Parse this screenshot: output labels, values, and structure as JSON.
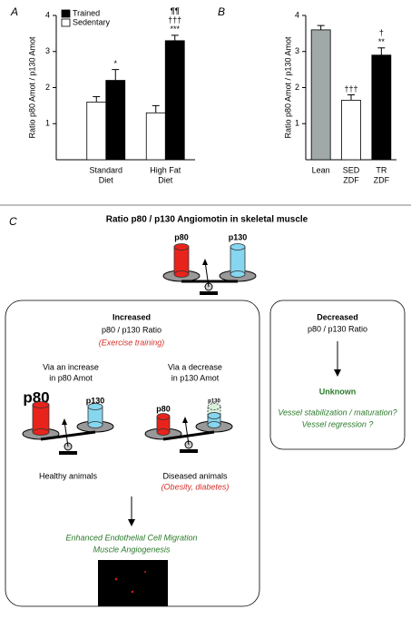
{
  "chart_data": [
    {
      "type": "bar",
      "panel": "A",
      "y_label": "Ratio p80 Amot / p130 Amot",
      "categories": [
        [
          "Standard",
          "Diet"
        ],
        [
          "High Fat",
          "Diet"
        ]
      ],
      "series": [
        {
          "name": "Trained",
          "color": "#000000",
          "values": [
            2.2,
            3.3
          ],
          "errors": [
            0.3,
            0.15
          ],
          "significance": [
            [
              "*"
            ],
            [
              "¶¶",
              "†††",
              "***"
            ]
          ]
        },
        {
          "name": "Sedentary",
          "color": "#ffffff",
          "values": [
            1.6,
            1.3
          ],
          "errors": [
            0.15,
            0.2
          ]
        }
      ],
      "ylim": [
        0,
        4
      ],
      "yticks": [
        1,
        2,
        3,
        4
      ]
    },
    {
      "type": "bar",
      "panel": "B",
      "y_label": "Ratio p80 Amot / p130 Amot",
      "categories": [
        [
          "Lean"
        ],
        [
          "SED",
          "ZDF"
        ],
        [
          "TR",
          "ZDF"
        ]
      ],
      "values": [
        3.6,
        1.65,
        2.9
      ],
      "errors": [
        0.12,
        0.15,
        0.2
      ],
      "colors": [
        "#a0a8a8",
        "#ffffff",
        "#000000"
      ],
      "significance": [
        [],
        [
          "†††"
        ],
        [
          "†",
          "**"
        ]
      ],
      "ylim": [
        0,
        4
      ],
      "yticks": [
        1,
        2,
        3,
        4
      ]
    }
  ],
  "diagram": {
    "panel": "C",
    "title": "Ratio p80 / p130 Angiomotin in skeletal muscle",
    "top_labels": [
      "p80",
      "p130"
    ],
    "increased": {
      "heading": "Increased",
      "subtitle": "p80 / p130 Ratio",
      "note": "(Exercise training)",
      "left": {
        "caption": [
          "Via an increase",
          "in p80 Amot"
        ],
        "labels": [
          "p80",
          "p130"
        ],
        "outcome": "Healthy animals"
      },
      "right": {
        "caption": [
          "Via a decrease",
          "in p130 Amot"
        ],
        "labels": [
          "p80",
          "p130"
        ],
        "outcome": "Diseased animals",
        "outcome_note": "(Obesity, diabetes)"
      },
      "result": [
        "Enhanced Endothelial Cell Migration",
        "Muscle Angiogenesis"
      ]
    },
    "decreased": {
      "heading": "Decreased",
      "subtitle": "p80 / p130 Ratio",
      "result": "Unknown",
      "notes": [
        "Vessel stabilization / maturation?",
        "Vessel regression ?"
      ]
    }
  }
}
